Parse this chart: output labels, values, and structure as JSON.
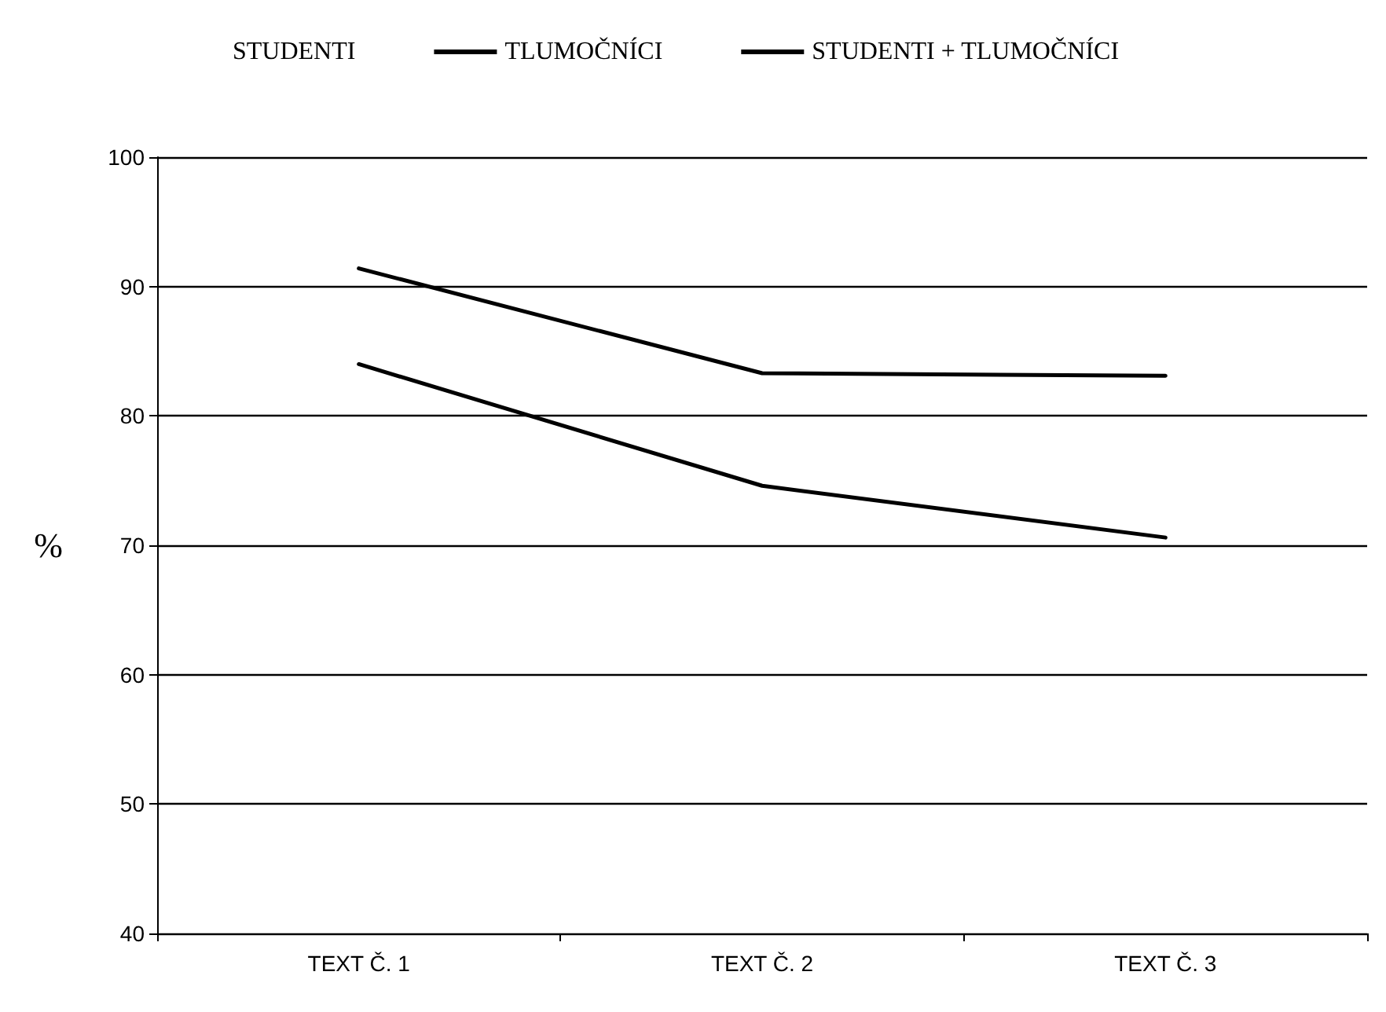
{
  "chart_data": {
    "type": "line",
    "ylabel": "%",
    "categories": [
      "TEXT Č. 1",
      "TEXT Č. 2",
      "TEXT Č. 3"
    ],
    "series": [
      {
        "name": "STUDENTI",
        "values": [
          null,
          null,
          null
        ]
      },
      {
        "name": "TLUMOČNÍCI",
        "color": "#000000",
        "values": [
          91.4,
          83.3,
          83.1
        ]
      },
      {
        "name": "STUDENTI + TLUMOČNÍCI",
        "color": "#000000",
        "values": [
          84.0,
          74.6,
          70.6
        ]
      }
    ],
    "ylim": [
      40,
      100
    ],
    "yticks": [
      40,
      50,
      60,
      70,
      80,
      90,
      100
    ],
    "grid": "y",
    "legend": "top",
    "marker": "none",
    "line_style": "solid"
  }
}
